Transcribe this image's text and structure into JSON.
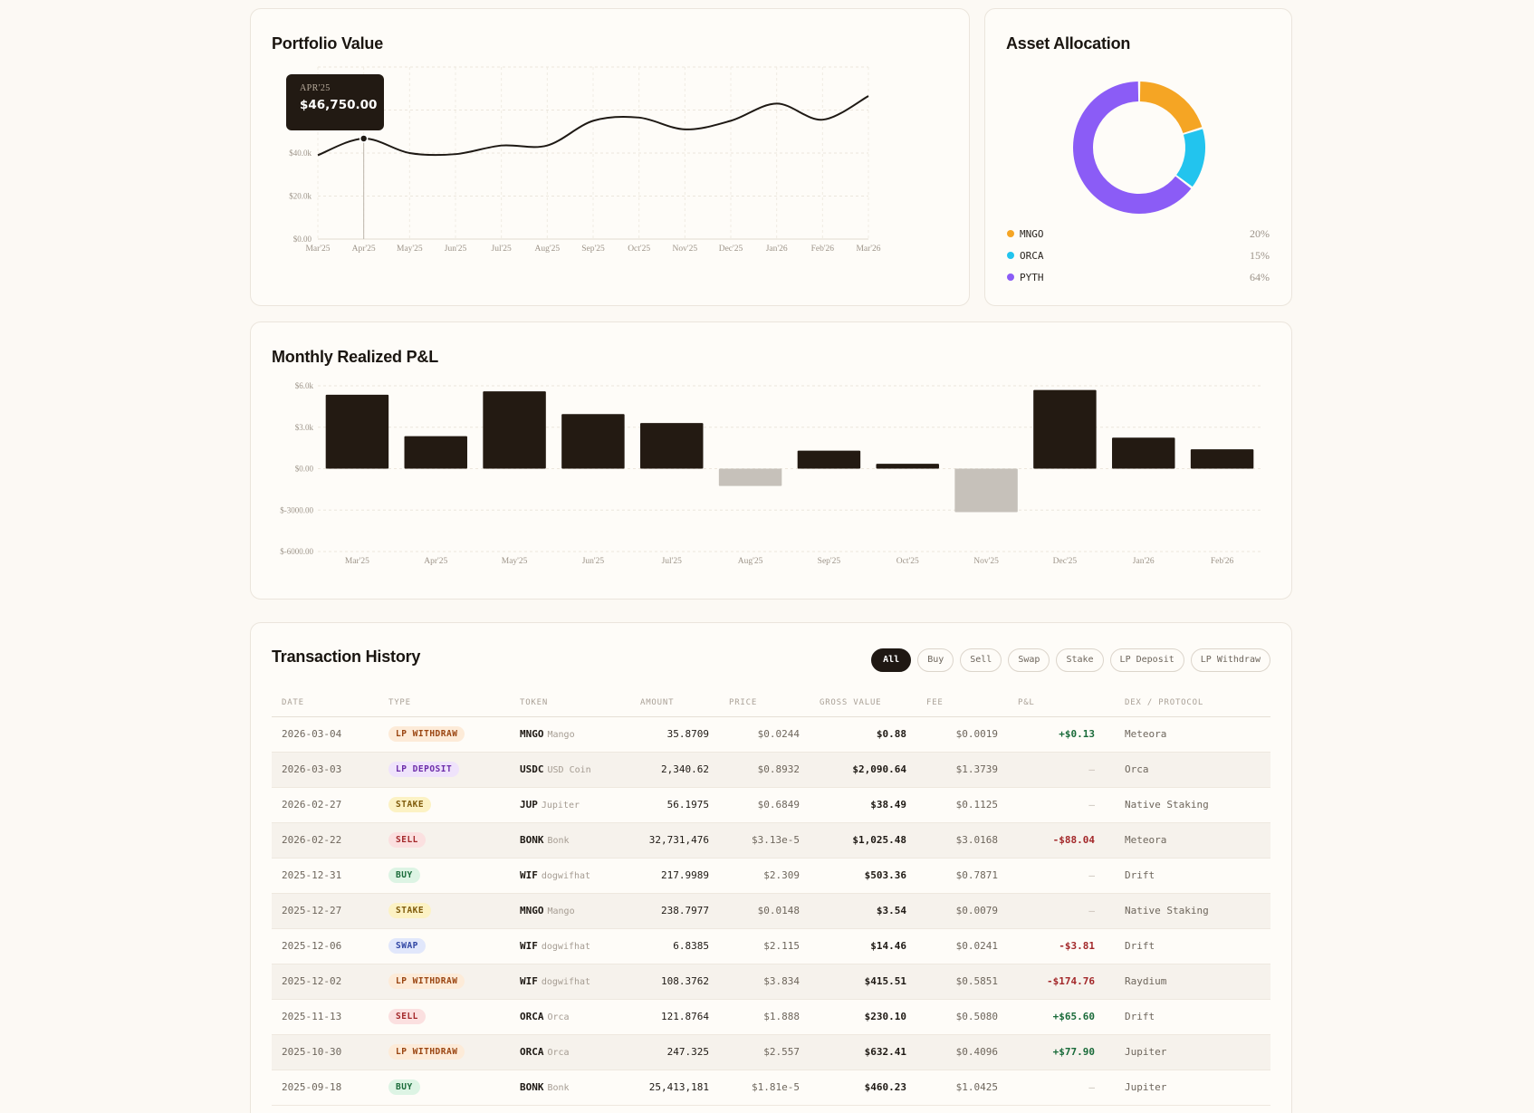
{
  "portfolio": {
    "title": "Portfolio Value",
    "tooltip": {
      "label": "APR'25",
      "value": "$46,750.00"
    },
    "chart_data": {
      "type": "line",
      "title": "Portfolio Value",
      "x": [
        "Mar'25",
        "Apr'25",
        "May'25",
        "Jun'25",
        "Jul'25",
        "Aug'25",
        "Sep'25",
        "Oct'25",
        "Nov'25",
        "Dec'25",
        "Jan'26",
        "Feb'26",
        "Mar'26"
      ],
      "values": [
        39000,
        46750,
        40000,
        39500,
        43500,
        43500,
        55000,
        56500,
        51000,
        55000,
        63000,
        55500,
        66500
      ],
      "y_ticks": [
        "$0.00",
        "$20.0k",
        "$40.0k",
        "$60.0k"
      ],
      "ylim": [
        0,
        80000
      ],
      "grid": true,
      "line_color": "#1e1914"
    }
  },
  "allocation": {
    "title": "Asset Allocation",
    "chart_data": {
      "type": "pie",
      "slices": [
        {
          "label": "MNGO",
          "pct_label": "20%",
          "value": 20,
          "color": "#f5a524"
        },
        {
          "label": "ORCA",
          "pct_label": "15%",
          "value": 15,
          "color": "#22c4ee"
        },
        {
          "label": "PYTH",
          "pct_label": "64%",
          "value": 64,
          "color": "#8b5cf6"
        }
      ]
    }
  },
  "pnl": {
    "title": "Monthly Realized P&L",
    "chart_data": {
      "type": "bar",
      "categories": [
        "Mar'25",
        "Apr'25",
        "May'25",
        "Jun'25",
        "Jul'25",
        "Aug'25",
        "Sep'25",
        "Oct'25",
        "Nov'25",
        "Dec'25",
        "Jan'26",
        "Feb'26"
      ],
      "values": [
        5350,
        2350,
        5600,
        3950,
        3300,
        -1250,
        1300,
        350,
        -3150,
        5700,
        2250,
        1400
      ],
      "y_ticks": [
        "$6.0k",
        "$3.0k",
        "$0.00",
        "$-3000.00",
        "$-6000.00"
      ],
      "ylim": [
        -6000,
        6000
      ],
      "grid": true,
      "positive_color": "#231a12",
      "negative_color": "#c6c1ba"
    }
  },
  "history": {
    "title": "Transaction History",
    "filters": [
      {
        "label": "All",
        "active": true
      },
      {
        "label": "Buy",
        "active": false
      },
      {
        "label": "Sell",
        "active": false
      },
      {
        "label": "Swap",
        "active": false
      },
      {
        "label": "Stake",
        "active": false
      },
      {
        "label": "LP Deposit",
        "active": false
      },
      {
        "label": "LP Withdraw",
        "active": false
      }
    ],
    "columns": [
      "DATE",
      "TYPE",
      "TOKEN",
      "AMOUNT",
      "PRICE",
      "GROSS VALUE",
      "FEE",
      "P&L",
      "DEX / PROTOCOL"
    ],
    "badge_styles": {
      "LP WITHDRAW": {
        "bg": "#fdebd8",
        "fg": "#9a4511"
      },
      "LP DEPOSIT": {
        "bg": "#efe3fb",
        "fg": "#6c2ca9"
      },
      "STAKE": {
        "bg": "#fcf2c4",
        "fg": "#7e5a0a"
      },
      "SELL": {
        "bg": "#fbe0e0",
        "fg": "#a3282a"
      },
      "BUY": {
        "bg": "#ddf4e4",
        "fg": "#1a6b3a"
      },
      "SWAP": {
        "bg": "#e1e7fb",
        "fg": "#2f45a3"
      }
    },
    "rows": [
      {
        "date": "2026-03-04",
        "type": "LP WITHDRAW",
        "token": "MNGO",
        "token_name": "Mango",
        "amount": "35.8709",
        "price": "$0.0244",
        "gross": "$0.88",
        "fee": "$0.0019",
        "pnl": "+$0.13",
        "dex": "Meteora"
      },
      {
        "date": "2026-03-03",
        "type": "LP DEPOSIT",
        "token": "USDC",
        "token_name": "USD Coin",
        "amount": "2,340.62",
        "price": "$0.8932",
        "gross": "$2,090.64",
        "fee": "$1.3739",
        "pnl": "—",
        "dex": "Orca"
      },
      {
        "date": "2026-02-27",
        "type": "STAKE",
        "token": "JUP",
        "token_name": "Jupiter",
        "amount": "56.1975",
        "price": "$0.6849",
        "gross": "$38.49",
        "fee": "$0.1125",
        "pnl": "—",
        "dex": "Native Staking"
      },
      {
        "date": "2026-02-22",
        "type": "SELL",
        "token": "BONK",
        "token_name": "Bonk",
        "amount": "32,731,476",
        "price": "$3.13e-5",
        "gross": "$1,025.48",
        "fee": "$3.0168",
        "pnl": "-$88.04",
        "dex": "Meteora"
      },
      {
        "date": "2025-12-31",
        "type": "BUY",
        "token": "WIF",
        "token_name": "dogwifhat",
        "amount": "217.9989",
        "price": "$2.309",
        "gross": "$503.36",
        "fee": "$0.7871",
        "pnl": "—",
        "dex": "Drift"
      },
      {
        "date": "2025-12-27",
        "type": "STAKE",
        "token": "MNGO",
        "token_name": "Mango",
        "amount": "238.7977",
        "price": "$0.0148",
        "gross": "$3.54",
        "fee": "$0.0079",
        "pnl": "—",
        "dex": "Native Staking"
      },
      {
        "date": "2025-12-06",
        "type": "SWAP",
        "token": "WIF",
        "token_name": "dogwifhat",
        "amount": "6.8385",
        "price": "$2.115",
        "gross": "$14.46",
        "fee": "$0.0241",
        "pnl": "-$3.81",
        "dex": "Drift"
      },
      {
        "date": "2025-12-02",
        "type": "LP WITHDRAW",
        "token": "WIF",
        "token_name": "dogwifhat",
        "amount": "108.3762",
        "price": "$3.834",
        "gross": "$415.51",
        "fee": "$0.5851",
        "pnl": "-$174.76",
        "dex": "Raydium"
      },
      {
        "date": "2025-11-13",
        "type": "SELL",
        "token": "ORCA",
        "token_name": "Orca",
        "amount": "121.8764",
        "price": "$1.888",
        "gross": "$230.10",
        "fee": "$0.5080",
        "pnl": "+$65.60",
        "dex": "Drift"
      },
      {
        "date": "2025-10-30",
        "type": "LP WITHDRAW",
        "token": "ORCA",
        "token_name": "Orca",
        "amount": "247.325",
        "price": "$2.557",
        "gross": "$632.41",
        "fee": "$0.4096",
        "pnl": "+$77.90",
        "dex": "Jupiter"
      },
      {
        "date": "2025-09-18",
        "type": "BUY",
        "token": "BONK",
        "token_name": "Bonk",
        "amount": "25,413,181",
        "price": "$1.81e-5",
        "gross": "$460.23",
        "fee": "$1.0425",
        "pnl": "—",
        "dex": "Jupiter"
      }
    ]
  }
}
